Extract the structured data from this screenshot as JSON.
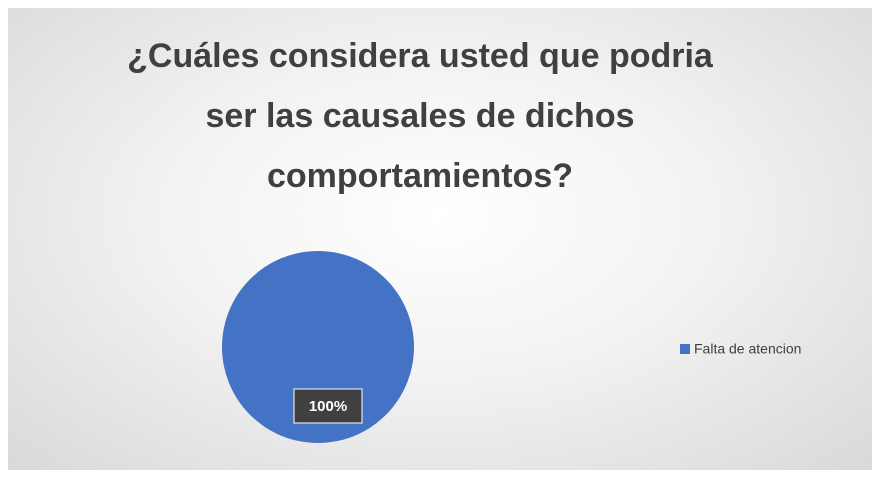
{
  "chart_data": {
    "type": "pie",
    "title": "¿Cuáles considera usted que podria ser las causales de dichos comportamientos?",
    "categories": [
      "Falta de atencion"
    ],
    "values": [
      100
    ],
    "value_labels": [
      "100%"
    ],
    "colors": [
      "#4472c4"
    ],
    "legend": "right"
  }
}
